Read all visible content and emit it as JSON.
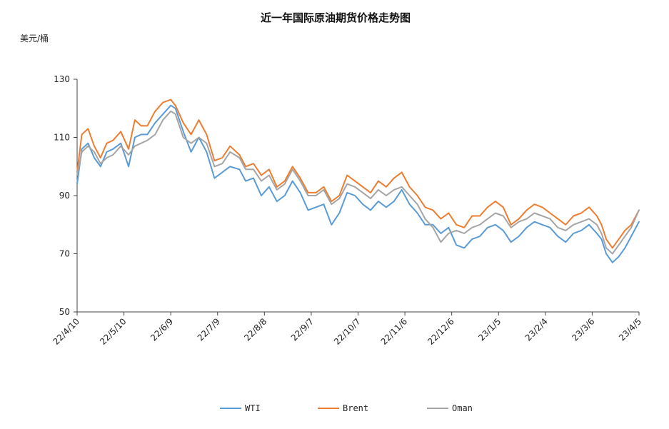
{
  "chart_data": {
    "type": "line",
    "title": "近一年国际原油期货价格走势图",
    "ylabel": "美元/桶",
    "xlabel": "",
    "ylim": [
      50,
      130
    ],
    "yticks": [
      50,
      70,
      90,
      110,
      130
    ],
    "x_tick_labels": [
      "22/4/10",
      "22/5/10",
      "22/6/9",
      "22/7/9",
      "22/8/8",
      "22/9/7",
      "22/10/7",
      "22/11/6",
      "22/12/6",
      "23/1/5",
      "23/2/4",
      "23/3/6",
      "23/4/5"
    ],
    "x_range_days": [
      0,
      360
    ],
    "grid": false,
    "legend_position": "bottom",
    "series": [
      {
        "name": "WTI",
        "color": "#5B9BD5",
        "x": [
          0,
          3,
          7,
          11,
          15,
          19,
          23,
          28,
          33,
          37,
          41,
          45,
          50,
          55,
          60,
          63,
          68,
          73,
          78,
          83,
          88,
          93,
          98,
          104,
          108,
          113,
          118,
          123,
          128,
          133,
          138,
          143,
          148,
          153,
          158,
          163,
          168,
          173,
          178,
          183,
          188,
          193,
          198,
          203,
          208,
          213,
          218,
          223,
          228,
          233,
          238,
          243,
          248,
          253,
          258,
          263,
          268,
          273,
          278,
          283,
          288,
          293,
          298,
          303,
          308,
          313,
          318,
          323,
          328,
          333,
          336,
          339,
          343,
          347,
          351,
          355,
          360
        ],
        "values": [
          94,
          106,
          108,
          103,
          100,
          105,
          106,
          108,
          100,
          110,
          111,
          111,
          115,
          118,
          121,
          120,
          112,
          105,
          110,
          105,
          96,
          98,
          100,
          99,
          95,
          96,
          90,
          93,
          88,
          90,
          95,
          91,
          85,
          86,
          87,
          80,
          84,
          91,
          90,
          87,
          85,
          88,
          86,
          88,
          92,
          87,
          84,
          80,
          80,
          77,
          79,
          73,
          72,
          75,
          76,
          79,
          80,
          78,
          74,
          76,
          79,
          81,
          80,
          79,
          76,
          74,
          77,
          78,
          80,
          77,
          75,
          70,
          67,
          69,
          72,
          76,
          81
        ]
      },
      {
        "name": "Brent",
        "color": "#ED7D31",
        "x": [
          0,
          3,
          7,
          11,
          15,
          19,
          23,
          28,
          33,
          37,
          41,
          45,
          50,
          55,
          60,
          63,
          68,
          73,
          78,
          83,
          88,
          93,
          98,
          104,
          108,
          113,
          118,
          123,
          128,
          133,
          138,
          143,
          148,
          153,
          158,
          163,
          168,
          173,
          178,
          183,
          188,
          193,
          198,
          203,
          208,
          213,
          218,
          223,
          228,
          233,
          238,
          243,
          248,
          253,
          258,
          263,
          268,
          273,
          278,
          283,
          288,
          293,
          298,
          303,
          308,
          313,
          318,
          323,
          328,
          333,
          336,
          339,
          343,
          347,
          351,
          355,
          360
        ],
        "values": [
          98,
          111,
          113,
          107,
          103,
          108,
          109,
          112,
          106,
          116,
          114,
          114,
          119,
          122,
          123,
          121,
          115,
          111,
          116,
          111,
          102,
          103,
          107,
          104,
          100,
          101,
          97,
          99,
          93,
          95,
          100,
          96,
          91,
          91,
          93,
          88,
          90,
          97,
          95,
          93,
          91,
          95,
          93,
          96,
          98,
          93,
          90,
          86,
          85,
          82,
          84,
          80,
          79,
          83,
          83,
          86,
          88,
          86,
          80,
          82,
          85,
          87,
          86,
          84,
          82,
          80,
          83,
          84,
          86,
          83,
          80,
          75,
          72,
          75,
          78,
          80,
          85
        ]
      },
      {
        "name": "Oman",
        "color": "#A5A5A5",
        "x": [
          0,
          3,
          7,
          11,
          15,
          19,
          23,
          28,
          33,
          37,
          41,
          45,
          50,
          55,
          60,
          63,
          68,
          73,
          78,
          83,
          88,
          93,
          98,
          104,
          108,
          113,
          118,
          123,
          128,
          133,
          138,
          143,
          148,
          153,
          158,
          163,
          168,
          173,
          178,
          183,
          188,
          193,
          198,
          203,
          208,
          213,
          218,
          223,
          228,
          233,
          238,
          243,
          248,
          253,
          258,
          263,
          268,
          273,
          278,
          283,
          288,
          293,
          298,
          303,
          308,
          313,
          318,
          323,
          328,
          333,
          336,
          339,
          343,
          347,
          351,
          355,
          360
        ],
        "values": [
          97,
          105,
          107,
          105,
          101,
          103,
          104,
          107,
          104,
          107,
          108,
          109,
          111,
          116,
          119,
          118,
          110,
          108,
          110,
          108,
          100,
          101,
          105,
          103,
          99,
          99,
          95,
          97,
          92,
          94,
          99,
          95,
          90,
          90,
          92,
          87,
          89,
          94,
          93,
          91,
          89,
          92,
          90,
          92,
          93,
          90,
          87,
          82,
          79,
          74,
          77,
          78,
          77,
          79,
          80,
          82,
          84,
          83,
          79,
          81,
          82,
          84,
          83,
          82,
          79,
          78,
          80,
          81,
          82,
          80,
          77,
          72,
          70,
          73,
          76,
          79,
          85
        ]
      }
    ]
  }
}
